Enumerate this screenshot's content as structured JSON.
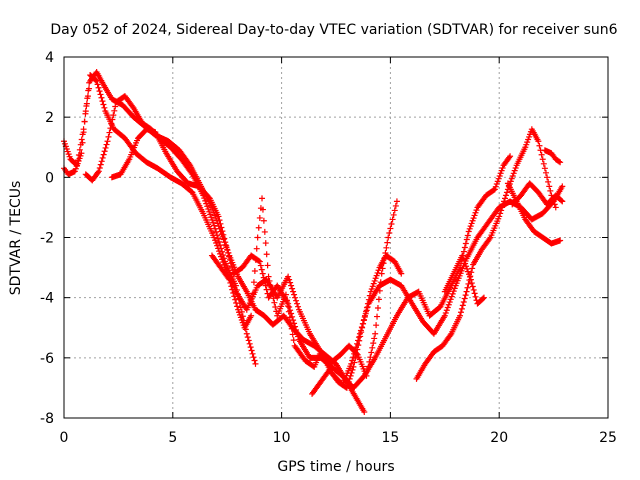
{
  "chart_data": {
    "type": "scatter",
    "title": "Day 052 of 2024, Sidereal Day-to-day VTEC variation (SDTVAR) for receiver sun6",
    "xlabel": "GPS time / hours",
    "ylabel": "SDTVAR / TECUs",
    "xlim": [
      0,
      25
    ],
    "ylim": [
      -8,
      4
    ],
    "xticks": [
      0,
      5,
      10,
      15,
      20,
      25
    ],
    "yticks": [
      -8,
      -6,
      -4,
      -2,
      0,
      2,
      4
    ],
    "grid": true,
    "marker": "plus",
    "color": "#ff0000",
    "tracks": [
      [
        [
          0.0,
          0.3
        ],
        [
          0.2,
          0.1
        ],
        [
          0.5,
          0.2
        ],
        [
          0.8,
          0.8
        ],
        [
          1.0,
          2.2
        ],
        [
          1.2,
          3.2
        ],
        [
          1.5,
          3.5
        ],
        [
          1.8,
          3.1
        ],
        [
          2.2,
          2.6
        ],
        [
          2.7,
          2.4
        ],
        [
          3.2,
          2.0
        ],
        [
          3.7,
          1.7
        ],
        [
          4.2,
          1.4
        ],
        [
          4.8,
          1.2
        ],
        [
          5.3,
          0.9
        ],
        [
          5.8,
          0.4
        ],
        [
          6.3,
          -0.3
        ],
        [
          6.8,
          -1.0
        ],
        [
          7.2,
          -1.8
        ],
        [
          7.6,
          -2.6
        ],
        [
          8.0,
          -3.3
        ],
        [
          8.4,
          -3.8
        ],
        [
          8.8,
          -4.4
        ],
        [
          9.2,
          -4.6
        ],
        [
          9.6,
          -4.9
        ],
        [
          10.1,
          -4.6
        ],
        [
          10.5,
          -5.0
        ],
        [
          11.0,
          -5.4
        ],
        [
          11.5,
          -5.6
        ],
        [
          12.0,
          -5.9
        ],
        [
          12.5,
          -6.2
        ],
        [
          13.0,
          -6.8
        ],
        [
          13.4,
          -7.3
        ],
        [
          13.8,
          -7.8
        ]
      ],
      [
        [
          0.0,
          1.2
        ],
        [
          0.3,
          0.6
        ],
        [
          0.6,
          0.4
        ],
        [
          0.9,
          1.6
        ],
        [
          1.2,
          3.4
        ],
        [
          1.5,
          3.2
        ],
        [
          1.9,
          2.2
        ],
        [
          2.3,
          1.6
        ],
        [
          2.8,
          1.3
        ],
        [
          3.3,
          0.8
        ],
        [
          3.8,
          0.5
        ],
        [
          4.3,
          0.3
        ],
        [
          4.9,
          0.0
        ],
        [
          5.4,
          -0.2
        ],
        [
          5.9,
          -0.5
        ],
        [
          6.4,
          -1.2
        ],
        [
          6.9,
          -2.0
        ],
        [
          7.4,
          -3.0
        ],
        [
          7.9,
          -3.8
        ],
        [
          8.4,
          -4.4
        ],
        [
          8.9,
          -3.6
        ],
        [
          9.3,
          -3.4
        ],
        [
          9.8,
          -4.0
        ],
        [
          10.3,
          -3.3
        ],
        [
          10.8,
          -4.4
        ],
        [
          11.3,
          -5.2
        ],
        [
          11.8,
          -5.8
        ],
        [
          12.3,
          -6.5
        ],
        [
          12.8,
          -6.9
        ],
        [
          13.2,
          -6.2
        ],
        [
          13.6,
          -5.2
        ],
        [
          14.0,
          -4.2
        ],
        [
          14.5,
          -3.6
        ],
        [
          15.0,
          -3.4
        ],
        [
          15.5,
          -3.6
        ],
        [
          16.0,
          -4.2
        ],
        [
          16.5,
          -4.8
        ],
        [
          17.0,
          -5.2
        ],
        [
          17.5,
          -4.6
        ],
        [
          18.0,
          -3.6
        ],
        [
          18.5,
          -2.7
        ],
        [
          19.0,
          -2.0
        ],
        [
          19.5,
          -1.5
        ],
        [
          20.0,
          -1.0
        ],
        [
          20.5,
          -0.8
        ],
        [
          21.0,
          -1.0
        ],
        [
          21.5,
          -1.4
        ],
        [
          22.0,
          -1.2
        ],
        [
          22.5,
          -0.8
        ],
        [
          22.9,
          -0.3
        ]
      ],
      [
        [
          1.0,
          0.1
        ],
        [
          1.3,
          -0.1
        ],
        [
          1.6,
          0.2
        ],
        [
          2.0,
          1.2
        ],
        [
          2.4,
          2.5
        ],
        [
          2.8,
          2.7
        ],
        [
          3.2,
          2.3
        ],
        [
          3.6,
          1.8
        ],
        [
          4.0,
          1.6
        ],
        [
          4.4,
          1.3
        ],
        [
          4.9,
          1.0
        ],
        [
          5.4,
          0.6
        ],
        [
          5.9,
          0.1
        ],
        [
          6.4,
          -0.6
        ],
        [
          6.9,
          -1.6
        ],
        [
          7.4,
          -2.8
        ],
        [
          7.9,
          -3.6
        ],
        [
          8.4,
          -5.2
        ],
        [
          8.8,
          -6.2
        ]
      ],
      [
        [
          2.2,
          0.0
        ],
        [
          2.6,
          0.1
        ],
        [
          3.0,
          0.6
        ],
        [
          3.4,
          1.3
        ],
        [
          3.8,
          1.6
        ],
        [
          4.2,
          1.5
        ],
        [
          4.7,
          0.8
        ],
        [
          5.2,
          0.2
        ],
        [
          5.7,
          -0.2
        ],
        [
          6.2,
          -0.3
        ],
        [
          6.7,
          -0.7
        ],
        [
          7.1,
          -1.3
        ],
        [
          7.5,
          -2.4
        ],
        [
          7.8,
          -3.2
        ],
        [
          8.2,
          -3.0
        ],
        [
          8.6,
          -2.6
        ],
        [
          9.0,
          -2.8
        ],
        [
          9.4,
          -4.0
        ],
        [
          9.8,
          -3.6
        ],
        [
          10.3,
          -4.2
        ],
        [
          10.8,
          -5.4
        ],
        [
          11.3,
          -6.0
        ],
        [
          11.8,
          -6.0
        ],
        [
          12.3,
          -6.3
        ],
        [
          12.8,
          -6.6
        ],
        [
          13.3,
          -7.0
        ],
        [
          13.8,
          -6.6
        ],
        [
          14.3,
          -6.0
        ],
        [
          14.8,
          -5.3
        ],
        [
          15.3,
          -4.6
        ],
        [
          15.8,
          -4.0
        ],
        [
          16.3,
          -3.8
        ],
        [
          16.8,
          -4.6
        ],
        [
          17.3,
          -4.3
        ],
        [
          17.8,
          -3.6
        ],
        [
          18.2,
          -3.0
        ],
        [
          18.6,
          -1.8
        ],
        [
          19.0,
          -1.0
        ],
        [
          19.4,
          -0.6
        ],
        [
          19.8,
          -0.4
        ],
        [
          20.2,
          0.4
        ],
        [
          20.5,
          0.7
        ]
      ],
      [
        [
          6.8,
          -2.6
        ],
        [
          7.2,
          -3.0
        ],
        [
          7.6,
          -3.4
        ],
        [
          8.0,
          -4.4
        ],
        [
          8.3,
          -5.0
        ],
        [
          8.6,
          -4.6
        ],
        [
          8.9,
          -2.0
        ],
        [
          9.1,
          -0.7
        ],
        [
          9.4,
          -3.3
        ],
        [
          9.8,
          -4.6
        ],
        [
          10.2,
          -3.9
        ],
        [
          10.6,
          -5.6
        ],
        [
          11.1,
          -6.1
        ],
        [
          11.5,
          -6.3
        ],
        [
          11.8,
          -5.8
        ],
        [
          12.2,
          -6.2
        ],
        [
          12.7,
          -5.9
        ],
        [
          13.1,
          -5.6
        ],
        [
          13.5,
          -5.9
        ],
        [
          13.9,
          -6.6
        ],
        [
          14.3,
          -5.2
        ],
        [
          14.6,
          -3.2
        ],
        [
          14.9,
          -2.0
        ],
        [
          15.1,
          -1.4
        ],
        [
          15.3,
          -0.8
        ]
      ],
      [
        [
          11.4,
          -7.2
        ],
        [
          11.8,
          -6.8
        ],
        [
          12.2,
          -6.4
        ],
        [
          12.6,
          -6.8
        ],
        [
          13.0,
          -7.0
        ],
        [
          13.3,
          -6.3
        ],
        [
          13.7,
          -5.0
        ],
        [
          14.1,
          -3.8
        ],
        [
          14.5,
          -3.0
        ],
        [
          14.8,
          -2.6
        ],
        [
          15.2,
          -2.8
        ],
        [
          15.5,
          -3.2
        ]
      ],
      [
        [
          16.2,
          -6.7
        ],
        [
          16.6,
          -6.2
        ],
        [
          17.0,
          -5.8
        ],
        [
          17.4,
          -5.6
        ],
        [
          17.8,
          -5.2
        ],
        [
          18.2,
          -4.6
        ],
        [
          18.5,
          -3.8
        ],
        [
          18.8,
          -2.9
        ],
        [
          19.2,
          -2.4
        ],
        [
          19.6,
          -2.0
        ],
        [
          20.0,
          -1.3
        ],
        [
          20.4,
          -0.4
        ],
        [
          20.8,
          0.4
        ],
        [
          21.2,
          1.0
        ],
        [
          21.5,
          1.6
        ],
        [
          21.8,
          1.2
        ],
        [
          22.0,
          0.6
        ],
        [
          22.2,
          0.0
        ],
        [
          22.4,
          -0.6
        ],
        [
          22.6,
          -1.0
        ]
      ],
      [
        [
          17.5,
          -3.8
        ],
        [
          17.9,
          -3.2
        ],
        [
          18.3,
          -2.6
        ],
        [
          18.7,
          -3.4
        ],
        [
          19.0,
          -4.2
        ],
        [
          19.3,
          -4.0
        ]
      ],
      [
        [
          20.4,
          -0.2
        ],
        [
          20.8,
          -0.8
        ],
        [
          21.2,
          -1.4
        ],
        [
          21.6,
          -1.8
        ],
        [
          22.0,
          -2.0
        ],
        [
          22.4,
          -2.2
        ],
        [
          22.8,
          -2.1
        ]
      ],
      [
        [
          20.6,
          -0.9
        ],
        [
          21.0,
          -0.6
        ],
        [
          21.4,
          -0.2
        ],
        [
          21.8,
          -0.5
        ],
        [
          22.2,
          -0.9
        ],
        [
          22.6,
          -0.6
        ],
        [
          22.9,
          -0.8
        ]
      ],
      [
        [
          22.1,
          0.9
        ],
        [
          22.4,
          0.8
        ],
        [
          22.6,
          0.6
        ],
        [
          22.8,
          0.5
        ]
      ]
    ]
  }
}
